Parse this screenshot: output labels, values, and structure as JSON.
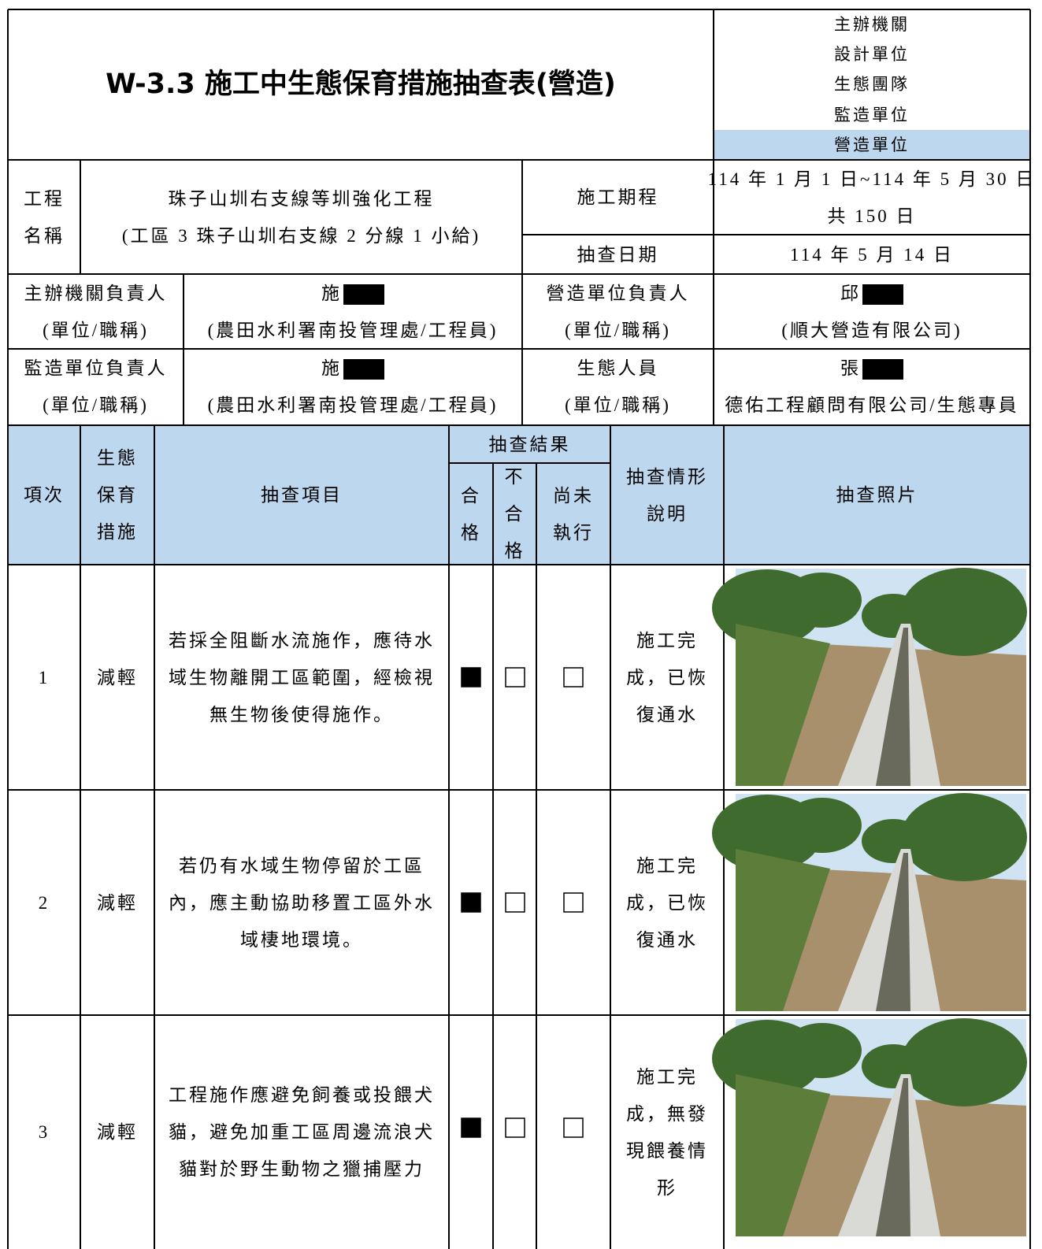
{
  "header": {
    "title": "W-3.3 施工中生態保育措施抽查表(營造)",
    "units": [
      "主辦機關",
      "設計單位",
      "生態團隊",
      "監造單位",
      "營造單位"
    ]
  },
  "project": {
    "name_label": [
      "工程",
      "名稱"
    ],
    "name": [
      "珠子山圳右支線等圳強化工程",
      "(工區 3 珠子山圳右支線 2 分線 1 小給)"
    ],
    "period_label": "施工期程",
    "period": [
      "114 年 1 月 1 日~114 年 5 月 30 日",
      "共 150 日"
    ],
    "date_label": "抽查日期",
    "date": "114 年 5 月 14 日"
  },
  "people": [
    [
      {
        "role": [
          "主辦機關負責人",
          "(單位/職稱)"
        ],
        "name": "施",
        "org": "(農田水利署南投管理處/工程員)"
      },
      {
        "role": [
          "營造單位負責人",
          "(單位/職稱)"
        ],
        "name": "邱",
        "org": "(順大營造有限公司)"
      }
    ],
    [
      {
        "role": [
          "監造單位負責人",
          "(單位/職稱)"
        ],
        "name": "施",
        "org": "(農田水利署南投管理處/工程員)"
      },
      {
        "role": [
          "生態人員",
          "(單位/職稱)"
        ],
        "name": "張",
        "org": "德佑工程顧問有限公司/生態專員"
      }
    ]
  ],
  "table": {
    "columns": {
      "no": "項次",
      "measure": [
        "生態",
        "保育",
        "措施"
      ],
      "item": "抽查項目",
      "result": "抽查結果",
      "pass": [
        "合",
        "格"
      ],
      "fail": [
        "不",
        "合",
        "格"
      ],
      "pending": [
        "尚未",
        "執行"
      ],
      "note": [
        "抽查情形",
        "說明"
      ],
      "photo": "抽查照片"
    },
    "rows": [
      {
        "no": "1",
        "measure": "減輕",
        "item": [
          "若採全阻斷水流施作，應待水",
          "域生物離開工區範圍，經檢視",
          "無生物後使得施作。"
        ],
        "checks": [
          true,
          false,
          false
        ],
        "note": [
          "施工完",
          "成，已恢",
          "復通水"
        ]
      },
      {
        "no": "2",
        "measure": "減輕",
        "item": [
          "若仍有水域生物停留於工區",
          "內，應主動協助移置工區外水",
          "域棲地環境。"
        ],
        "checks": [
          true,
          false,
          false
        ],
        "note": [
          "施工完",
          "成，已恢",
          "復通水"
        ]
      },
      {
        "no": "3",
        "measure": "減輕",
        "item": [
          "工程施作應避免飼養或投餵犬",
          "貓，避免加重工區周邊流浪犬",
          "貓對於野生動物之獵捕壓力"
        ],
        "checks": [
          true,
          false,
          false
        ],
        "note": [
          "施工完",
          "成，無發",
          "現餵養情",
          "形"
        ]
      }
    ]
  }
}
